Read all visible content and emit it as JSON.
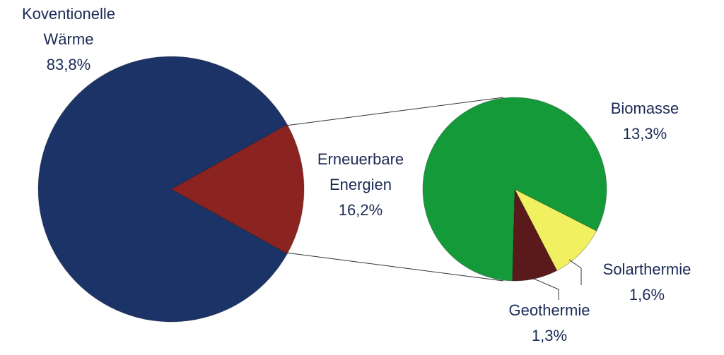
{
  "chart_data": {
    "type": "pie-of-pie",
    "main": {
      "categories": [
        "Koventionelle Wärme",
        "Erneuerbare Energien"
      ],
      "values": [
        83.8,
        16.2
      ],
      "value_labels": [
        "83,8%",
        "16,2%"
      ],
      "colors": [
        "#1b3366",
        "#8b2320"
      ]
    },
    "secondary": {
      "categories": [
        "Biomasse",
        "Solarthermie",
        "Geothermie"
      ],
      "values": [
        13.3,
        1.6,
        1.3
      ],
      "value_labels": [
        "13,3%",
        "1,6%",
        "1,3%"
      ],
      "colors": [
        "#159a3a",
        "#f0f060",
        "#5a1a1c"
      ]
    }
  }
}
